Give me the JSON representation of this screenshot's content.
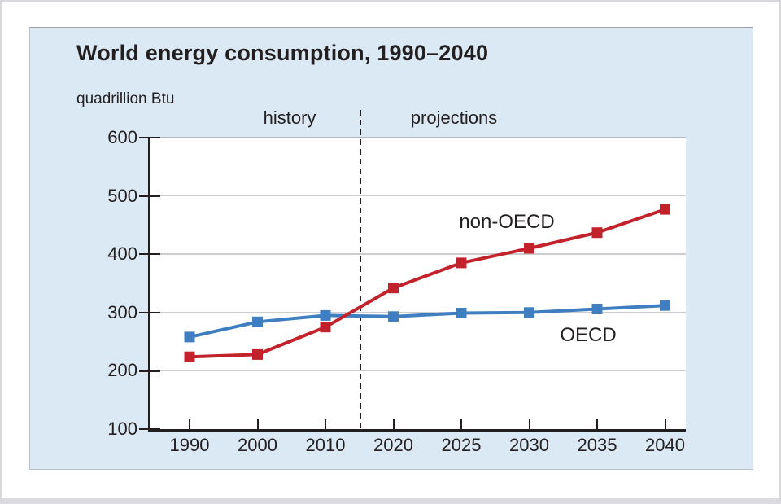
{
  "panel": {
    "title": "World energy consumption, 1990–2040",
    "unit_label": "quadrillion Btu",
    "history_label": "history",
    "projections_label": "projections"
  },
  "chart_data": {
    "type": "line",
    "title": "World energy consumption, 1990–2040",
    "ylabel": "quadrillion Btu",
    "x_categories": [
      "1990",
      "2000",
      "2010",
      "2020",
      "2025",
      "2030",
      "2035",
      "2040"
    ],
    "y_ticks": [
      600,
      500,
      400,
      300,
      200,
      100
    ],
    "ylim": [
      100,
      600
    ],
    "grid": true,
    "legend_position": "inline-labels",
    "divider": {
      "x_between": [
        "2010",
        "2020"
      ],
      "left_label": "history",
      "right_label": "projections"
    },
    "series": [
      {
        "name": "non-OECD",
        "color": "#c2222c",
        "values": [
          224,
          228,
          275,
          342,
          385,
          410,
          437,
          477
        ]
      },
      {
        "name": "OECD",
        "color": "#3f7fc1",
        "values": [
          258,
          284,
          295,
          293,
          299,
          300,
          306,
          312
        ]
      }
    ],
    "colors": {
      "panel_bg": "#dbe9f5",
      "plot_bg": "#ffffff",
      "gridline": "#cacccf",
      "axis": "#231f20",
      "text": "#231f20"
    }
  }
}
